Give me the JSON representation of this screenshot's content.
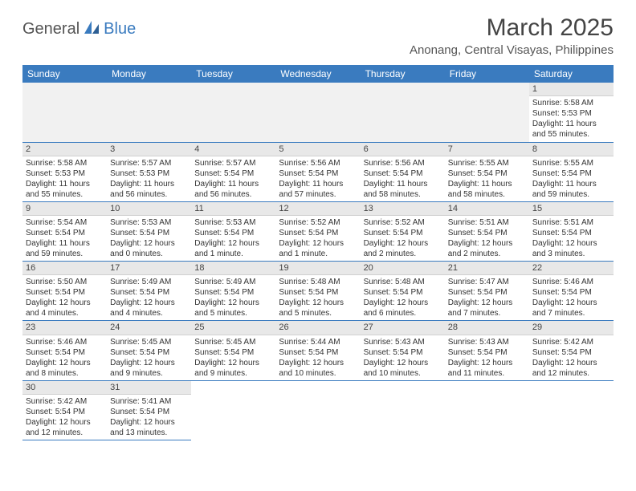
{
  "brand": {
    "part1": "General",
    "part2": "Blue"
  },
  "title": "March 2025",
  "location": "Anonang, Central Visayas, Philippines",
  "colors": {
    "header_bg": "#3a7bbf",
    "header_fg": "#ffffff",
    "daynum_bg": "#e8e8e8",
    "row_border": "#3a7bbf",
    "empty_bg": "#f1f1f1",
    "text": "#333333"
  },
  "typography": {
    "title_fontsize": 30,
    "location_fontsize": 15,
    "dayheader_fontsize": 12,
    "cell_fontsize": 10
  },
  "day_names": [
    "Sunday",
    "Monday",
    "Tuesday",
    "Wednesday",
    "Thursday",
    "Friday",
    "Saturday"
  ],
  "weeks": [
    [
      null,
      null,
      null,
      null,
      null,
      null,
      {
        "n": "1",
        "sunrise": "Sunrise: 5:58 AM",
        "sunset": "Sunset: 5:53 PM",
        "daylight": "Daylight: 11 hours and 55 minutes."
      }
    ],
    [
      {
        "n": "2",
        "sunrise": "Sunrise: 5:58 AM",
        "sunset": "Sunset: 5:53 PM",
        "daylight": "Daylight: 11 hours and 55 minutes."
      },
      {
        "n": "3",
        "sunrise": "Sunrise: 5:57 AM",
        "sunset": "Sunset: 5:53 PM",
        "daylight": "Daylight: 11 hours and 56 minutes."
      },
      {
        "n": "4",
        "sunrise": "Sunrise: 5:57 AM",
        "sunset": "Sunset: 5:54 PM",
        "daylight": "Daylight: 11 hours and 56 minutes."
      },
      {
        "n": "5",
        "sunrise": "Sunrise: 5:56 AM",
        "sunset": "Sunset: 5:54 PM",
        "daylight": "Daylight: 11 hours and 57 minutes."
      },
      {
        "n": "6",
        "sunrise": "Sunrise: 5:56 AM",
        "sunset": "Sunset: 5:54 PM",
        "daylight": "Daylight: 11 hours and 58 minutes."
      },
      {
        "n": "7",
        "sunrise": "Sunrise: 5:55 AM",
        "sunset": "Sunset: 5:54 PM",
        "daylight": "Daylight: 11 hours and 58 minutes."
      },
      {
        "n": "8",
        "sunrise": "Sunrise: 5:55 AM",
        "sunset": "Sunset: 5:54 PM",
        "daylight": "Daylight: 11 hours and 59 minutes."
      }
    ],
    [
      {
        "n": "9",
        "sunrise": "Sunrise: 5:54 AM",
        "sunset": "Sunset: 5:54 PM",
        "daylight": "Daylight: 11 hours and 59 minutes."
      },
      {
        "n": "10",
        "sunrise": "Sunrise: 5:53 AM",
        "sunset": "Sunset: 5:54 PM",
        "daylight": "Daylight: 12 hours and 0 minutes."
      },
      {
        "n": "11",
        "sunrise": "Sunrise: 5:53 AM",
        "sunset": "Sunset: 5:54 PM",
        "daylight": "Daylight: 12 hours and 1 minute."
      },
      {
        "n": "12",
        "sunrise": "Sunrise: 5:52 AM",
        "sunset": "Sunset: 5:54 PM",
        "daylight": "Daylight: 12 hours and 1 minute."
      },
      {
        "n": "13",
        "sunrise": "Sunrise: 5:52 AM",
        "sunset": "Sunset: 5:54 PM",
        "daylight": "Daylight: 12 hours and 2 minutes."
      },
      {
        "n": "14",
        "sunrise": "Sunrise: 5:51 AM",
        "sunset": "Sunset: 5:54 PM",
        "daylight": "Daylight: 12 hours and 2 minutes."
      },
      {
        "n": "15",
        "sunrise": "Sunrise: 5:51 AM",
        "sunset": "Sunset: 5:54 PM",
        "daylight": "Daylight: 12 hours and 3 minutes."
      }
    ],
    [
      {
        "n": "16",
        "sunrise": "Sunrise: 5:50 AM",
        "sunset": "Sunset: 5:54 PM",
        "daylight": "Daylight: 12 hours and 4 minutes."
      },
      {
        "n": "17",
        "sunrise": "Sunrise: 5:49 AM",
        "sunset": "Sunset: 5:54 PM",
        "daylight": "Daylight: 12 hours and 4 minutes."
      },
      {
        "n": "18",
        "sunrise": "Sunrise: 5:49 AM",
        "sunset": "Sunset: 5:54 PM",
        "daylight": "Daylight: 12 hours and 5 minutes."
      },
      {
        "n": "19",
        "sunrise": "Sunrise: 5:48 AM",
        "sunset": "Sunset: 5:54 PM",
        "daylight": "Daylight: 12 hours and 5 minutes."
      },
      {
        "n": "20",
        "sunrise": "Sunrise: 5:48 AM",
        "sunset": "Sunset: 5:54 PM",
        "daylight": "Daylight: 12 hours and 6 minutes."
      },
      {
        "n": "21",
        "sunrise": "Sunrise: 5:47 AM",
        "sunset": "Sunset: 5:54 PM",
        "daylight": "Daylight: 12 hours and 7 minutes."
      },
      {
        "n": "22",
        "sunrise": "Sunrise: 5:46 AM",
        "sunset": "Sunset: 5:54 PM",
        "daylight": "Daylight: 12 hours and 7 minutes."
      }
    ],
    [
      {
        "n": "23",
        "sunrise": "Sunrise: 5:46 AM",
        "sunset": "Sunset: 5:54 PM",
        "daylight": "Daylight: 12 hours and 8 minutes."
      },
      {
        "n": "24",
        "sunrise": "Sunrise: 5:45 AM",
        "sunset": "Sunset: 5:54 PM",
        "daylight": "Daylight: 12 hours and 9 minutes."
      },
      {
        "n": "25",
        "sunrise": "Sunrise: 5:45 AM",
        "sunset": "Sunset: 5:54 PM",
        "daylight": "Daylight: 12 hours and 9 minutes."
      },
      {
        "n": "26",
        "sunrise": "Sunrise: 5:44 AM",
        "sunset": "Sunset: 5:54 PM",
        "daylight": "Daylight: 12 hours and 10 minutes."
      },
      {
        "n": "27",
        "sunrise": "Sunrise: 5:43 AM",
        "sunset": "Sunset: 5:54 PM",
        "daylight": "Daylight: 12 hours and 10 minutes."
      },
      {
        "n": "28",
        "sunrise": "Sunrise: 5:43 AM",
        "sunset": "Sunset: 5:54 PM",
        "daylight": "Daylight: 12 hours and 11 minutes."
      },
      {
        "n": "29",
        "sunrise": "Sunrise: 5:42 AM",
        "sunset": "Sunset: 5:54 PM",
        "daylight": "Daylight: 12 hours and 12 minutes."
      }
    ],
    [
      {
        "n": "30",
        "sunrise": "Sunrise: 5:42 AM",
        "sunset": "Sunset: 5:54 PM",
        "daylight": "Daylight: 12 hours and 12 minutes."
      },
      {
        "n": "31",
        "sunrise": "Sunrise: 5:41 AM",
        "sunset": "Sunset: 5:54 PM",
        "daylight": "Daylight: 12 hours and 13 minutes."
      },
      null,
      null,
      null,
      null,
      null
    ]
  ]
}
